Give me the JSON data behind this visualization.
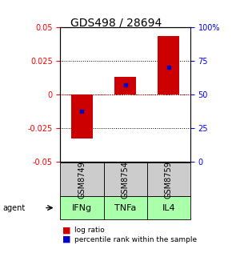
{
  "title": "GDS498 / 28694",
  "samples": [
    "GSM8749",
    "GSM8754",
    "GSM8759"
  ],
  "agents": [
    "IFNg",
    "TNFa",
    "IL4"
  ],
  "log_ratios": [
    -0.033,
    0.013,
    0.043
  ],
  "percentile_ranks": [
    37,
    57,
    70
  ],
  "ylim_left": [
    -0.05,
    0.05
  ],
  "ylim_right": [
    0,
    100
  ],
  "yticks_left": [
    -0.05,
    -0.025,
    0,
    0.025,
    0.05
  ],
  "yticks_right": [
    0,
    25,
    50,
    75,
    100
  ],
  "ytick_labels_right": [
    "0",
    "25",
    "50",
    "75",
    "100%"
  ],
  "bar_color": "#cc0000",
  "dot_color": "#0000cc",
  "sample_bg_color": "#cccccc",
  "agent_bg_color": "#aaffaa",
  "bar_width": 0.5,
  "title_fontsize": 10,
  "tick_fontsize": 7,
  "agent_fontsize": 8,
  "sample_fontsize": 7,
  "legend_fontsize": 6.5
}
